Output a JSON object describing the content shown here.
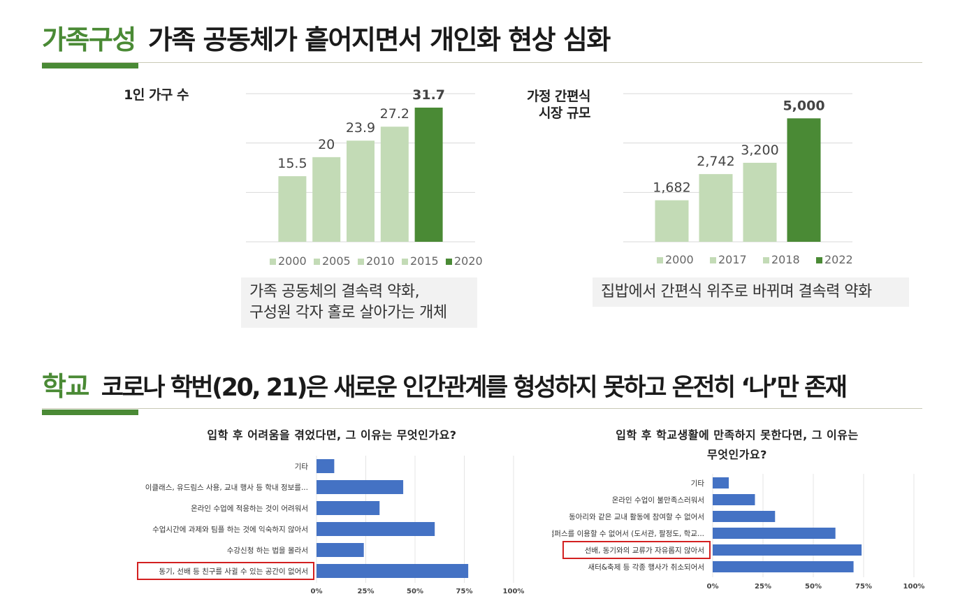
{
  "family_section": {
    "key": "가족구성",
    "headline": "가족 공동체가 흩어지면서 개인화 현상 심화"
  },
  "school_section": {
    "key": "학교",
    "headline": "코로나 학번(20, 21)은 새로운 인간관계를 형성하지 못하고 온전히 ‘나’만 존재"
  },
  "captions": {
    "single_household": [
      "가족 공동체의 결속력 약화,",
      "구성원 각자 홀로 살아가는 개체"
    ],
    "hmr": "집밥에서 간편식 위주로 바뀌며 결속력 약화"
  },
  "survey_titles": {
    "left": "입학 후 어려움을 겪었다면, 그 이유는 무엇인가요?",
    "right_line1": "입학 후 학교생활에 만족하지 못한다면, 그 이유는",
    "right_line2": "무엇인가요?"
  },
  "chart_data": [
    {
      "id": "single_household",
      "type": "bar",
      "title": "1인 가구 수",
      "categories": [
        "2000",
        "2005",
        "2010",
        "2015",
        "2020"
      ],
      "values": [
        15.5,
        20,
        23.9,
        27.2,
        31.7
      ],
      "value_labels": [
        "15.5",
        "20",
        "23.9",
        "27.2",
        "31.7"
      ],
      "ylim": [
        0,
        35
      ],
      "grid": true,
      "legend": "bottom",
      "highlight_index": 4,
      "colors": {
        "base": "#c3dbb6",
        "highlight": "#4a8a35"
      }
    },
    {
      "id": "hmr_market",
      "type": "bar",
      "title_lines": [
        "가정 간편식",
        "시장 규모"
      ],
      "categories": [
        "2000",
        "2017",
        "2018",
        "2022"
      ],
      "values": [
        1682,
        2742,
        3200,
        5000
      ],
      "value_labels": [
        "1,682",
        "2,742",
        "3,200",
        "5,000"
      ],
      "ylim": [
        0,
        6000
      ],
      "grid": true,
      "legend": "bottom",
      "highlight_index": 3,
      "colors": {
        "base": "#c3dbb6",
        "highlight": "#4a8a35"
      }
    },
    {
      "id": "survey_difficulty",
      "type": "bar",
      "orientation": "horizontal",
      "categories": [
        "기타",
        "이클래스, 유드림스 사용, 교내 행사 등 학내 정보를...",
        "온라인 수업에 적응하는 것이 어려워서",
        "수업시간에 과제와 팀플 하는 것에 익숙하지 않아서",
        "수강신청 하는 법을 몰라서",
        "동기, 선배 등 친구를 사귈 수 있는 공간이 없어서"
      ],
      "values": [
        9,
        44,
        32,
        60,
        24,
        77
      ],
      "x_ticks": [
        "0%",
        "25%",
        "50%",
        "75%",
        "100%"
      ],
      "xlim": [
        0,
        100
      ],
      "highlight_index": 5,
      "colors": {
        "bar": "#4472c4",
        "highlight_box": "#d32020"
      }
    },
    {
      "id": "survey_dissatisfaction",
      "type": "bar",
      "orientation": "horizontal",
      "categories": [
        "기타",
        "온라인 수업이 불만족스러워서",
        "동아리와 같은 교내 활동에 참여할 수 없어서",
        "캠퍼스를 이용할 수 없어서 (도서관, 팔정도, 학교...",
        "선배, 동기와의 교류가 자유롭지 않아서",
        "새터&축제 등 각종 행사가 취소되어서"
      ],
      "values": [
        8,
        21,
        31,
        61,
        74,
        70
      ],
      "x_ticks": [
        "0%",
        "25%",
        "50%",
        "75%",
        "100%"
      ],
      "xlim": [
        0,
        100
      ],
      "highlight_index": 4,
      "colors": {
        "bar": "#4472c4",
        "highlight_box": "#d32020"
      }
    }
  ]
}
